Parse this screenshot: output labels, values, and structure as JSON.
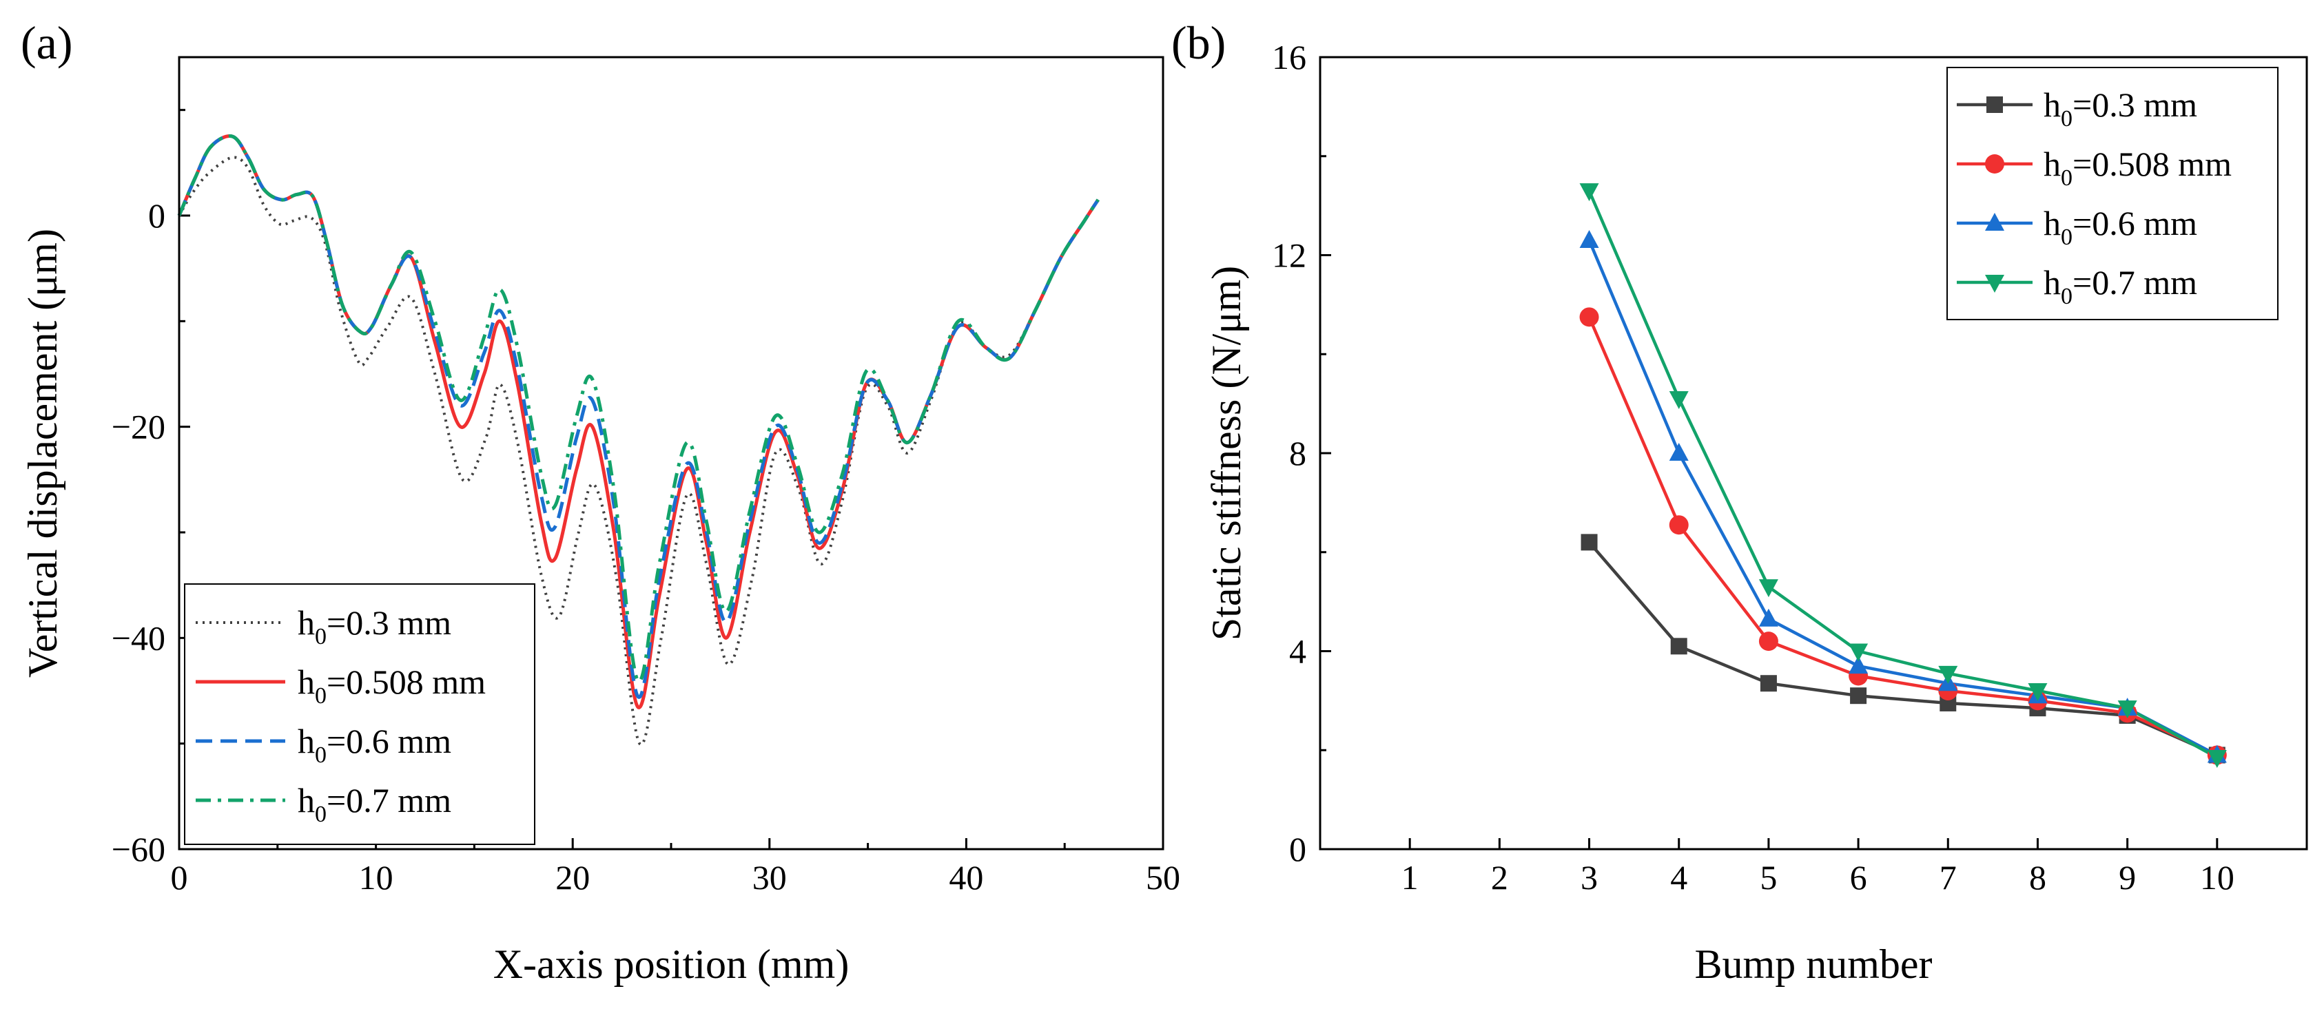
{
  "panels": {
    "a": "(a)",
    "b": "(b)"
  },
  "chart_data": [
    {
      "type": "line",
      "panel_label": "(a)",
      "title": "",
      "xlabel": "X-axis position (mm)",
      "ylabel": "Vertical displacement (μm)",
      "xlim": [
        0,
        50
      ],
      "ylim": [
        -60,
        15
      ],
      "xticks": [
        0,
        10,
        20,
        30,
        40,
        50
      ],
      "yticks": [
        0,
        -20,
        -40,
        -60
      ],
      "xtick_labels": [
        "0",
        "10",
        "20",
        "30",
        "40",
        "50"
      ],
      "ytick_labels": [
        "0",
        "−20",
        "−40",
        "−60"
      ],
      "grid": false,
      "legend_position": "bottom-left",
      "series": [
        {
          "name": "h0=0.3 mm",
          "legend_main": "h",
          "legend_sub": "0",
          "legend_rest": "=0.3 mm",
          "color": "#404040",
          "style": "dotted",
          "x": [
            0,
            0.7,
            1.5,
            2.7,
            3.5,
            4.3,
            5.1,
            5.8,
            6.7,
            7.4,
            8.2,
            9.1,
            9.6,
            10.6,
            11.8,
            13.0,
            14.4,
            15.6,
            16.3,
            17.2,
            18.4,
            19.3,
            20.3,
            21.1,
            22.2,
            23.4,
            24.5,
            25.8,
            26.8,
            27.9,
            29.1,
            30.3,
            31.5,
            32.6,
            33.7,
            34.9,
            36.0,
            37.0,
            38.2,
            39.6,
            41.0,
            42.2,
            43.5,
            44.8,
            46.0,
            46.7
          ],
          "y": [
            0,
            2.2,
            4.0,
            5.5,
            4.5,
            1.0,
            -0.8,
            -0.5,
            -0.2,
            -2.5,
            -9.0,
            -13.8,
            -13.5,
            -10.5,
            -7.8,
            -15.0,
            -25.0,
            -21.0,
            -16.0,
            -21.5,
            -34.0,
            -38.0,
            -30.0,
            -25.5,
            -34.0,
            -50.0,
            -40.0,
            -26.5,
            -33.0,
            -42.5,
            -34.5,
            -22.5,
            -26.0,
            -33.0,
            -27.0,
            -16.5,
            -18.0,
            -22.5,
            -17.5,
            -10.3,
            -12.5,
            -13.2,
            -9.0,
            -4.0,
            -0.5,
            1.5
          ]
        },
        {
          "name": "h0=0.508 mm",
          "legend_main": "h",
          "legend_sub": "0",
          "legend_rest": "=0.508 mm",
          "color": "#f03030",
          "style": "solid",
          "x": [
            0,
            0.8,
            1.6,
            2.7,
            3.5,
            4.3,
            5.2,
            6.0,
            6.8,
            7.5,
            8.3,
            9.2,
            9.8,
            10.8,
            11.8,
            13.0,
            14.3,
            15.5,
            16.3,
            17.2,
            18.4,
            19.1,
            20.2,
            21.0,
            22.1,
            23.3,
            24.4,
            25.8,
            26.8,
            27.8,
            29.0,
            30.3,
            31.4,
            32.5,
            33.7,
            34.9,
            36.0,
            37.0,
            38.2,
            39.6,
            41.0,
            42.2,
            43.5,
            44.8,
            46.0,
            46.7
          ],
          "y": [
            0,
            3.5,
            6.5,
            7.5,
            5.5,
            2.5,
            1.5,
            2.0,
            1.8,
            -2.5,
            -8.5,
            -11.0,
            -10.5,
            -6.5,
            -4.0,
            -12.0,
            -20.0,
            -15.0,
            -10.0,
            -16.0,
            -29.0,
            -32.5,
            -24.0,
            -20.0,
            -30.0,
            -46.5,
            -36.0,
            -24.0,
            -31.0,
            -40.0,
            -30.0,
            -20.5,
            -24.5,
            -31.5,
            -26.0,
            -16.0,
            -17.5,
            -21.5,
            -17.0,
            -10.5,
            -12.5,
            -13.5,
            -9.0,
            -4.0,
            -0.5,
            1.5
          ]
        },
        {
          "name": "h0=0.6 mm",
          "legend_main": "h",
          "legend_sub": "0",
          "legend_rest": "=0.6 mm",
          "color": "#1a6fd0",
          "style": "dashed",
          "x": [
            0,
            0.8,
            1.6,
            2.7,
            3.5,
            4.3,
            5.2,
            6.0,
            6.8,
            7.5,
            8.3,
            9.2,
            9.8,
            10.8,
            11.8,
            13.0,
            14.3,
            15.5,
            16.3,
            17.2,
            18.4,
            19.1,
            20.2,
            21.0,
            22.1,
            23.3,
            24.4,
            25.8,
            26.8,
            27.8,
            29.0,
            30.3,
            31.4,
            32.5,
            33.7,
            34.9,
            36.0,
            37.0,
            38.2,
            39.6,
            41.0,
            42.2,
            43.5,
            44.8,
            46.0,
            46.7
          ],
          "y": [
            0,
            3.5,
            6.5,
            7.5,
            5.5,
            2.5,
            1.5,
            2.0,
            1.8,
            -2.5,
            -8.5,
            -11.0,
            -10.5,
            -6.5,
            -4.0,
            -11.0,
            -18.0,
            -13.0,
            -9.0,
            -14.5,
            -26.5,
            -29.5,
            -21.0,
            -17.5,
            -27.5,
            -45.5,
            -34.5,
            -23.5,
            -30.0,
            -38.5,
            -29.0,
            -20.0,
            -24.0,
            -31.0,
            -25.5,
            -16.0,
            -17.5,
            -21.5,
            -17.0,
            -10.5,
            -12.5,
            -13.5,
            -9.0,
            -4.0,
            -0.5,
            1.5
          ]
        },
        {
          "name": "h0=0.7 mm",
          "legend_main": "h",
          "legend_sub": "0",
          "legend_rest": "=0.7 mm",
          "color": "#12a36a",
          "style": "dashdot",
          "x": [
            0,
            0.8,
            1.6,
            2.7,
            3.5,
            4.3,
            5.2,
            6.0,
            6.8,
            7.5,
            8.3,
            9.2,
            9.8,
            10.8,
            11.8,
            13.0,
            14.3,
            15.5,
            16.3,
            17.2,
            18.4,
            19.1,
            20.2,
            21.0,
            22.1,
            23.3,
            24.4,
            25.8,
            26.8,
            27.8,
            29.0,
            30.3,
            31.4,
            32.5,
            33.7,
            34.9,
            36.0,
            37.0,
            38.2,
            39.6,
            41.0,
            42.2,
            43.5,
            44.8,
            46.0,
            46.7
          ],
          "y": [
            0,
            3.5,
            6.5,
            7.5,
            5.5,
            2.5,
            1.5,
            2.0,
            1.8,
            -2.5,
            -8.5,
            -11.0,
            -10.5,
            -6.5,
            -3.5,
            -10.0,
            -17.5,
            -11.5,
            -7.0,
            -12.5,
            -24.5,
            -27.5,
            -19.0,
            -15.5,
            -26.0,
            -44.0,
            -33.0,
            -21.5,
            -29.0,
            -37.5,
            -28.0,
            -19.0,
            -23.5,
            -30.0,
            -24.5,
            -14.8,
            -17.5,
            -21.5,
            -17.0,
            -10.0,
            -12.5,
            -13.5,
            -9.0,
            -4.0,
            -0.5,
            1.5
          ]
        }
      ]
    },
    {
      "type": "line",
      "panel_label": "(b)",
      "title": "",
      "xlabel": "Bump number",
      "ylabel": "Static stiffness (N/μm)",
      "xlim": [
        0,
        11
      ],
      "ylim": [
        0,
        16
      ],
      "xticks": [
        1,
        2,
        3,
        4,
        5,
        6,
        7,
        8,
        9,
        10
      ],
      "yticks": [
        0,
        4,
        8,
        12,
        16
      ],
      "xtick_labels": [
        "1",
        "2",
        "3",
        "4",
        "5",
        "6",
        "7",
        "8",
        "9",
        "10"
      ],
      "ytick_labels": [
        "0",
        "4",
        "8",
        "12",
        "16"
      ],
      "grid": false,
      "legend_position": "top-right",
      "x": [
        3,
        4,
        5,
        6,
        7,
        8,
        9,
        10
      ],
      "series": [
        {
          "name": "h0=0.3 mm",
          "legend_main": "h",
          "legend_sub": "0",
          "legend_rest": "=0.3 mm",
          "color": "#404040",
          "marker": "square",
          "values": [
            6.2,
            4.1,
            3.35,
            3.1,
            2.95,
            2.85,
            2.7,
            1.9
          ]
        },
        {
          "name": "h0=0.508 mm",
          "legend_main": "h",
          "legend_sub": "0",
          "legend_rest": "=0.508 mm",
          "color": "#f03030",
          "marker": "circle",
          "values": [
            10.75,
            6.55,
            4.2,
            3.5,
            3.2,
            3.0,
            2.75,
            1.9
          ]
        },
        {
          "name": "h0=0.6 mm",
          "legend_main": "h",
          "legend_sub": "0",
          "legend_rest": "=0.6 mm",
          "color": "#1a6fd0",
          "marker": "triangle-up",
          "values": [
            12.3,
            8.0,
            4.65,
            3.7,
            3.35,
            3.1,
            2.85,
            1.9
          ]
        },
        {
          "name": "h0=0.7 mm",
          "legend_main": "h",
          "legend_sub": "0",
          "legend_rest": "=0.7 mm",
          "color": "#12a36a",
          "marker": "triangle-down",
          "values": [
            13.3,
            9.1,
            5.3,
            4.0,
            3.55,
            3.2,
            2.85,
            1.85
          ]
        }
      ]
    }
  ]
}
